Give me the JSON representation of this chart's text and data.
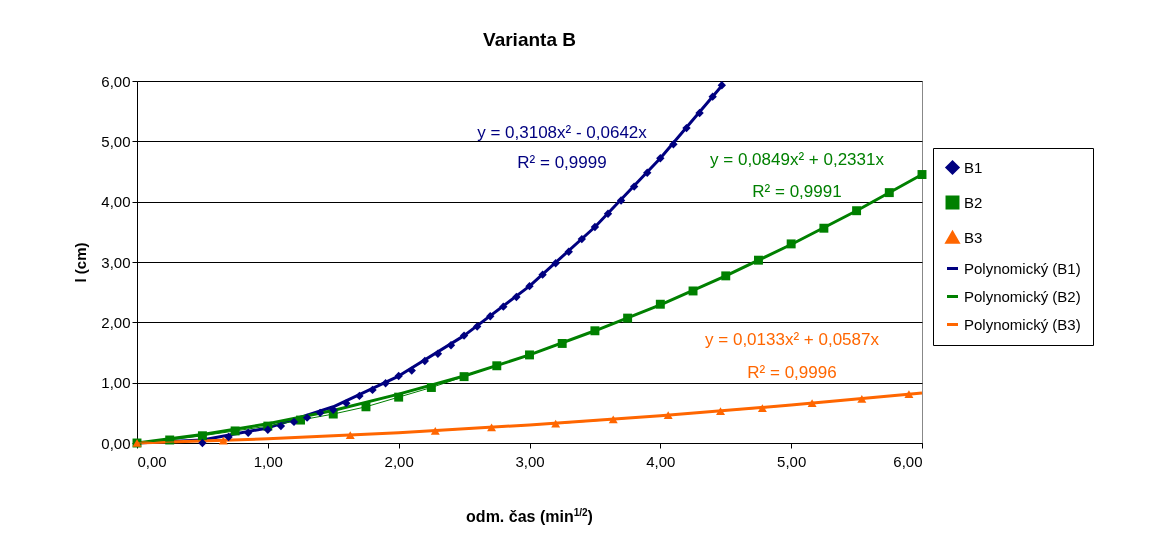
{
  "chart_data": {
    "type": "line",
    "title": "Varianta B",
    "xlabel": "odm. čas (min$^{1/2}$)",
    "ylabel": "l (cm)",
    "xlim": [
      0,
      6
    ],
    "ylim": [
      0,
      6
    ],
    "xticks": [
      {
        "value": 0,
        "label": "0,00"
      },
      {
        "value": 1,
        "label": "1,00"
      },
      {
        "value": 2,
        "label": "2,00"
      },
      {
        "value": 3,
        "label": "3,00"
      },
      {
        "value": 4,
        "label": "4,00"
      },
      {
        "value": 5,
        "label": "5,00"
      },
      {
        "value": 6,
        "label": "6,00"
      }
    ],
    "yticks": [
      {
        "value": 0,
        "label": "0,00"
      },
      {
        "value": 1,
        "label": "1,00"
      },
      {
        "value": 2,
        "label": "2,00"
      },
      {
        "value": 3,
        "label": "3,00"
      },
      {
        "value": 4,
        "label": "4,00"
      },
      {
        "value": 5,
        "label": "5,00"
      },
      {
        "value": 6,
        "label": "6,00"
      }
    ],
    "grid": "y",
    "legend": "right",
    "series": [
      {
        "name": "B1",
        "type": "scatter",
        "marker": "diamond",
        "color": "#000080",
        "x": [
          0.5,
          0.7,
          0.85,
          1.0,
          1.1,
          1.2,
          1.3,
          1.4,
          1.5,
          1.6,
          1.7,
          1.8,
          1.9,
          2.0,
          2.1,
          2.2,
          2.3,
          2.4,
          2.5,
          2.6,
          2.7,
          2.8,
          2.9,
          3.0,
          3.1,
          3.2,
          3.3,
          3.4,
          3.5,
          3.6,
          3.7,
          3.8,
          3.9,
          4.0,
          4.1,
          4.2,
          4.3,
          4.4,
          4.47
        ],
        "values": [
          0,
          0.1,
          0.17,
          0.22,
          0.28,
          0.35,
          0.42,
          0.5,
          0.55,
          0.66,
          0.78,
          0.88,
          0.99,
          1.11,
          1.2,
          1.36,
          1.48,
          1.62,
          1.78,
          1.93,
          2.1,
          2.26,
          2.42,
          2.6,
          2.79,
          2.98,
          3.17,
          3.38,
          3.58,
          3.8,
          4.02,
          4.25,
          4.48,
          4.72,
          4.95,
          5.22,
          5.47,
          5.74,
          5.93
        ]
      },
      {
        "name": "B2",
        "marker": "square",
        "color": "#008000",
        "x": [
          0,
          0.25,
          0.5,
          0.75,
          1,
          1.25,
          1.5,
          1.75,
          2,
          2.25,
          2.5,
          2.75,
          3,
          3.25,
          3.5,
          3.75,
          4,
          4.25,
          4.5,
          4.75,
          5,
          5.25,
          5.5,
          5.75,
          6
        ],
        "values": [
          0,
          0.05,
          0.12,
          0.2,
          0.28,
          0.38,
          0.48,
          0.6,
          0.76,
          0.92,
          1.1,
          1.28,
          1.46,
          1.65,
          1.86,
          2.07,
          2.3,
          2.52,
          2.77,
          3.03,
          3.3,
          3.56,
          3.85,
          4.15,
          4.45
        ]
      },
      {
        "name": "B3",
        "marker": "triangle",
        "color": "#ff6600",
        "x": [
          0,
          0.66,
          1.63,
          2.28,
          2.71,
          3.2,
          3.64,
          4.06,
          4.46,
          4.78,
          5.16,
          5.54,
          5.9
        ],
        "values": [
          0,
          0.04,
          0.13,
          0.2,
          0.26,
          0.32,
          0.39,
          0.46,
          0.53,
          0.58,
          0.66,
          0.73,
          0.81
        ]
      },
      {
        "name": "Polynomický (B1)",
        "color": "#000080",
        "x": [
          0,
          0.5,
          1,
          1.5,
          2,
          2.5,
          3,
          3.5,
          4,
          4.47
        ],
        "values": [
          0,
          0.05,
          0.25,
          0.6,
          1.11,
          1.78,
          2.6,
          3.58,
          4.72,
          5.92
        ]
      },
      {
        "name": "Polynomický (B2)",
        "color": "#008000",
        "x": [
          0,
          0.5,
          1,
          1.5,
          2,
          2.5,
          3,
          3.5,
          4,
          4.5,
          5,
          5.5,
          6
        ],
        "values": [
          0,
          0.14,
          0.32,
          0.54,
          0.81,
          1.11,
          1.46,
          1.86,
          2.29,
          2.77,
          3.29,
          3.85,
          4.45
        ]
      },
      {
        "name": "Polynomický (B3)",
        "color": "#ff6600",
        "x": [
          0,
          1,
          2,
          3,
          4,
          5,
          6
        ],
        "values": [
          0,
          0.07,
          0.17,
          0.3,
          0.45,
          0.63,
          0.83
        ]
      }
    ],
    "annotations": [
      "y = 0,3108x² - 0,0642x",
      "R² = 0,9999",
      "y = 0,0849x² + 0,2331x",
      "R² = 0,9991",
      "y = 0,0133x² + 0,0587x",
      "R² = 0,9996"
    ]
  }
}
